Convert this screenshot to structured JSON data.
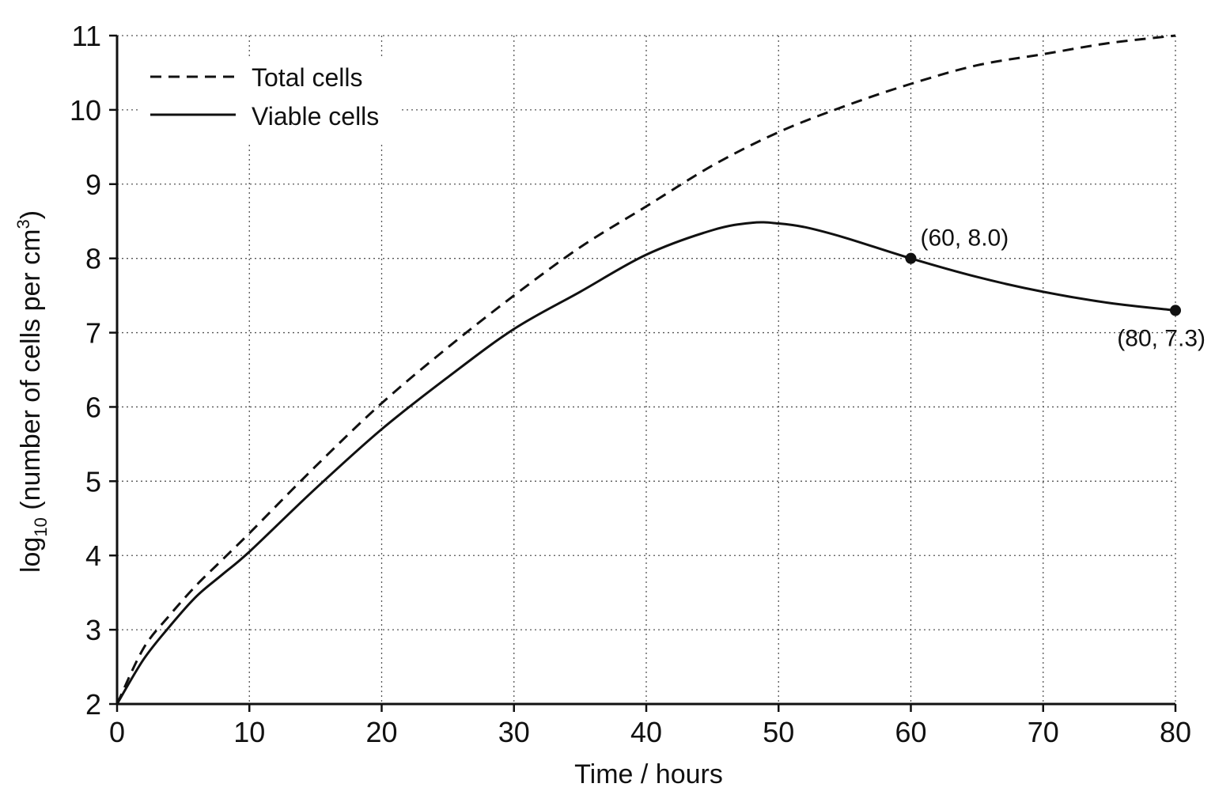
{
  "chart_data": {
    "type": "line",
    "title": "",
    "xlabel": "Time / hours",
    "ylabel": {
      "prefix": "log",
      "subscript": "10",
      "main": " (number of cells per cm",
      "superscript": "3",
      "suffix": ")"
    },
    "xlim": [
      0,
      80
    ],
    "ylim": [
      2,
      11
    ],
    "x_ticks": [
      "0",
      "10",
      "20",
      "30",
      "40",
      "50",
      "60",
      "70",
      "80"
    ],
    "y_ticks": [
      "2",
      "3",
      "4",
      "5",
      "6",
      "7",
      "8",
      "9",
      "10",
      "11"
    ],
    "grid": true,
    "legend_position": "top-left",
    "series": [
      {
        "name": "Total cells",
        "style": "dashed",
        "color": "#111111",
        "x": [
          0,
          2,
          4,
          6,
          8,
          10,
          15,
          20,
          25,
          30,
          35,
          40,
          45,
          50,
          55,
          60,
          65,
          70,
          75,
          80
        ],
        "y": [
          2.0,
          2.75,
          3.2,
          3.6,
          3.95,
          4.3,
          5.2,
          6.05,
          6.8,
          7.5,
          8.15,
          8.7,
          9.25,
          9.7,
          10.05,
          10.35,
          10.6,
          10.75,
          10.9,
          11.0
        ]
      },
      {
        "name": "Viable cells",
        "style": "solid",
        "color": "#111111",
        "x": [
          0,
          2,
          4,
          6,
          8,
          10,
          15,
          20,
          25,
          30,
          35,
          40,
          45,
          48,
          50,
          52,
          55,
          60,
          65,
          70,
          75,
          80
        ],
        "y": [
          2.0,
          2.6,
          3.05,
          3.45,
          3.75,
          4.05,
          4.9,
          5.7,
          6.4,
          7.05,
          7.55,
          8.05,
          8.38,
          8.48,
          8.47,
          8.42,
          8.28,
          8.0,
          7.75,
          7.55,
          7.4,
          7.3
        ]
      }
    ],
    "annotations": [
      {
        "text": "(60, 8.0)",
        "x": 60,
        "y": 8.0,
        "placement": "above-right"
      },
      {
        "text": "(80, 7.3)",
        "x": 80,
        "y": 7.3,
        "placement": "below-left"
      }
    ]
  }
}
